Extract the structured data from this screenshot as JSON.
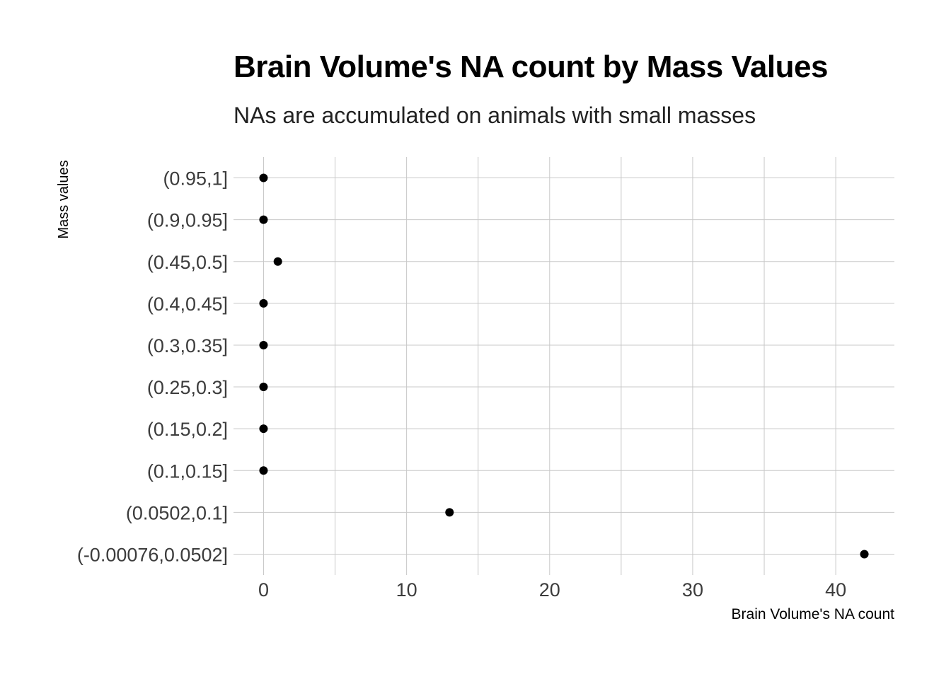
{
  "chart_data": {
    "type": "scatter",
    "title": "Brain Volume's NA count by Mass Values",
    "subtitle": "NAs are accumulated on animals with small masses",
    "xlabel": "Brain Volume's NA count",
    "ylabel": "Mass values",
    "categories": [
      "(-0.00076,0.0502]",
      "(0.0502,0.1]",
      "(0.1,0.15]",
      "(0.15,0.2]",
      "(0.25,0.3]",
      "(0.3,0.35]",
      "(0.4,0.45]",
      "(0.45,0.5]",
      "(0.9,0.95]",
      "(0.95,1]"
    ],
    "values": [
      42,
      13,
      0,
      0,
      0,
      0,
      0,
      1,
      0,
      0
    ],
    "xlim": [
      -2.1,
      44.1
    ],
    "x_ticks": [
      0,
      10,
      20,
      30,
      40
    ],
    "grid": true,
    "point_color": "#000000",
    "grid_color": "#c8c8c8"
  }
}
